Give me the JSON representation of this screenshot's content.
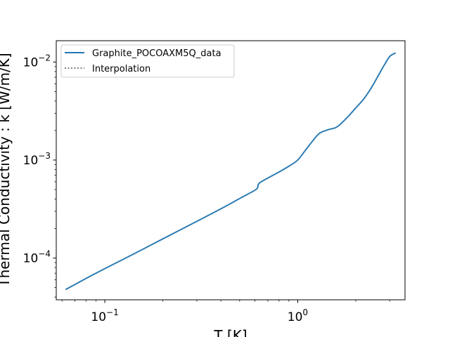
{
  "chart_data": {
    "type": "line",
    "title": "",
    "xlabel": "T [K]",
    "ylabel": "Thermal Conductivity : k [W/m/K]",
    "xscale": "log",
    "yscale": "log",
    "xlim": [
      0.056,
      3.6
    ],
    "ylim": [
      3.75e-05,
      0.0165
    ],
    "grid": false,
    "legend_position": "upper-left",
    "x_ticks": [
      {
        "value": 0.1,
        "base": "10",
        "exp": "−1"
      },
      {
        "value": 1,
        "base": "10",
        "exp": "0"
      }
    ],
    "y_ticks": [
      {
        "value": 0.0001,
        "base": "10",
        "exp": "−4"
      },
      {
        "value": 0.001,
        "base": "10",
        "exp": "−3"
      },
      {
        "value": 0.01,
        "base": "10",
        "exp": "−2"
      }
    ],
    "series": [
      {
        "name": "Graphite_POCOAXM5Q_data",
        "color": "#1f77b4",
        "style": "solid",
        "x": [
          0.063,
          0.08,
          0.1,
          0.15,
          0.2,
          0.3,
          0.4,
          0.5,
          0.6,
          0.62,
          0.63,
          0.7,
          0.8,
          0.9,
          1.0,
          1.1,
          1.2,
          1.3,
          1.45,
          1.6,
          1.8,
          2.0,
          2.2,
          2.4,
          2.6,
          2.8,
          3.0,
          3.2
        ],
        "y": [
          4.8e-05,
          6.2e-05,
          7.8e-05,
          0.000117,
          0.000157,
          0.000237,
          0.000318,
          0.000405,
          0.000492,
          0.000525,
          0.000578,
          0.000655,
          0.000755,
          0.000865,
          0.001,
          0.00127,
          0.00158,
          0.00188,
          0.00205,
          0.00218,
          0.0027,
          0.0034,
          0.0042,
          0.0054,
          0.0071,
          0.0092,
          0.0114,
          0.0123
        ]
      },
      {
        "name": "Interpolation",
        "color": "#808080",
        "style": "dotted",
        "x": [
          0.063,
          0.08,
          0.1,
          0.15,
          0.2,
          0.3,
          0.4,
          0.5,
          0.6,
          0.62,
          0.63,
          0.7,
          0.8,
          0.9,
          1.0,
          1.1,
          1.2,
          1.3,
          1.45,
          1.6,
          1.8,
          2.0,
          2.2,
          2.4,
          2.6,
          2.8,
          3.0,
          3.2
        ],
        "y": [
          4.8e-05,
          6.2e-05,
          7.8e-05,
          0.000117,
          0.000157,
          0.000237,
          0.000318,
          0.000405,
          0.000492,
          0.000525,
          0.000578,
          0.000655,
          0.000755,
          0.000865,
          0.001,
          0.00127,
          0.00158,
          0.00188,
          0.00205,
          0.00218,
          0.0027,
          0.0034,
          0.0042,
          0.0054,
          0.0071,
          0.0092,
          0.0114,
          0.0123
        ]
      }
    ]
  }
}
